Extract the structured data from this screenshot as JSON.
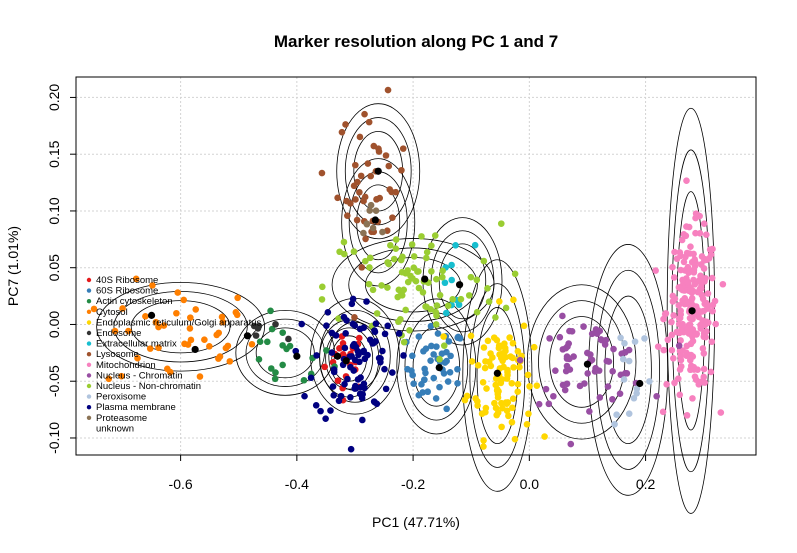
{
  "chart_data": {
    "type": "scatter",
    "title": "Marker resolution along PC 1 and 7",
    "xlabel": "PC1 (47.71%)",
    "ylabel": "PC7 (1.01%)",
    "xlim": [
      -0.78,
      0.39
    ],
    "ylim": [
      -0.115,
      0.218
    ],
    "x_ticks": [
      -0.6,
      -0.4,
      -0.2,
      0.0,
      0.2
    ],
    "x_tick_labels": [
      "-0.6",
      "-0.4",
      "-0.2",
      "0.0",
      "0.2"
    ],
    "y_ticks": [
      -0.1,
      -0.05,
      0.0,
      0.05,
      0.1,
      0.15,
      0.2
    ],
    "y_tick_labels": [
      "-0.10",
      "-0.05",
      "0.00",
      "0.05",
      "0.10",
      "0.15",
      "0.20"
    ],
    "grid": true,
    "legend_position": "left",
    "ellipse_levels": [
      1.0,
      1.35,
      1.7
    ],
    "series": [
      {
        "name": "40S Ribosome",
        "color": "#e41a1c",
        "n": 22,
        "center": [
          -0.315,
          -0.03
        ],
        "spread": [
          0.018,
          0.014
        ]
      },
      {
        "name": "60S Ribosome",
        "color": "#377eb8",
        "n": 45,
        "center": [
          -0.16,
          -0.038
        ],
        "spread": [
          0.025,
          0.018
        ]
      },
      {
        "name": "Actin cytoskeleton",
        "color": "#238b45",
        "n": 18,
        "center": [
          -0.42,
          -0.028
        ],
        "spread": [
          0.04,
          0.016
        ]
      },
      {
        "name": "Cytosol",
        "color": "#ff7f00",
        "n": 42,
        "center": [
          -0.6,
          -0.012
        ],
        "spread": [
          0.065,
          0.024
        ]
      },
      {
        "name": "Endoplasmic reticulum/Golgi apparatus",
        "color": "#ffd700",
        "n": 95,
        "center": [
          -0.05,
          -0.043
        ],
        "spread": [
          0.028,
          0.028
        ]
      },
      {
        "name": "Endosome",
        "color": "#333333",
        "n": 6,
        "center": [
          -0.47,
          -0.01
        ],
        "spread": [
          0.02,
          0.01
        ]
      },
      {
        "name": "Extracellular matrix",
        "color": "#17becf",
        "n": 10,
        "center": [
          -0.13,
          0.035
        ],
        "spread": [
          0.018,
          0.02
        ]
      },
      {
        "name": "Lysosome",
        "color": "#a0522d",
        "n": 45,
        "center": [
          -0.27,
          0.125
        ],
        "spread": [
          0.03,
          0.035
        ]
      },
      {
        "name": "Mitochondrion",
        "color": "#f781bf",
        "n": 210,
        "center": [
          0.28,
          0.012
        ],
        "spread": [
          0.022,
          0.035
        ]
      },
      {
        "name": "Nucleus - Chromatin",
        "color": "#984ea3",
        "n": 65,
        "center": [
          0.1,
          -0.033
        ],
        "spread": [
          0.05,
          0.018
        ]
      },
      {
        "name": "Nucleus - Non-chromatin",
        "color": "#9acd32",
        "n": 85,
        "center": [
          -0.2,
          0.032
        ],
        "spread": [
          0.075,
          0.028
        ]
      },
      {
        "name": "Peroxisome",
        "color": "#b0c4de",
        "n": 14,
        "center": [
          0.175,
          -0.04
        ],
        "spread": [
          0.02,
          0.03
        ]
      },
      {
        "name": "Plasma membrane",
        "color": "#000080",
        "n": 85,
        "center": [
          -0.3,
          -0.03
        ],
        "spread": [
          0.035,
          0.028
        ]
      },
      {
        "name": "Proteasome",
        "color": "#8b7355",
        "n": 8,
        "center": [
          -0.27,
          0.09
        ],
        "spread": [
          0.015,
          0.015
        ]
      },
      {
        "name": "unknown",
        "color": "#ffffff",
        "n": 0,
        "center": [
          0,
          0
        ],
        "spread": [
          0,
          0
        ]
      }
    ],
    "ellipses": [
      {
        "center": [
          -0.6,
          -0.002
        ],
        "radius": [
          0.085,
          0.023
        ]
      },
      {
        "center": [
          -0.42,
          -0.025
        ],
        "radius": [
          0.05,
          0.022
        ]
      },
      {
        "center": [
          -0.3,
          -0.028
        ],
        "radius": [
          0.045,
          0.03
        ]
      },
      {
        "center": [
          -0.31,
          -0.03
        ],
        "radius": [
          0.03,
          0.02
        ]
      },
      {
        "center": [
          -0.26,
          0.135
        ],
        "radius": [
          0.042,
          0.035
        ]
      },
      {
        "center": [
          -0.26,
          0.09
        ],
        "radius": [
          0.037,
          0.033
        ]
      },
      {
        "center": [
          -0.2,
          0.035
        ],
        "radius": [
          0.082,
          0.024
        ]
      },
      {
        "center": [
          -0.115,
          0.038
        ],
        "radius": [
          0.04,
          0.033
        ]
      },
      {
        "center": [
          -0.16,
          -0.037
        ],
        "radius": [
          0.04,
          0.035
        ]
      },
      {
        "center": [
          -0.055,
          -0.045
        ],
        "radius": [
          0.035,
          0.06
        ]
      },
      {
        "center": [
          0.09,
          -0.033
        ],
        "radius": [
          0.055,
          0.04
        ]
      },
      {
        "center": [
          0.17,
          -0.04
        ],
        "radius": [
          0.04,
          0.065
        ]
      },
      {
        "center": [
          0.278,
          0.012
        ],
        "radius": [
          0.024,
          0.105
        ]
      }
    ],
    "centroids": [
      [
        -0.575,
        -0.022
      ],
      [
        -0.4,
        -0.028
      ],
      [
        -0.33,
        -0.028
      ],
      [
        -0.315,
        -0.032
      ],
      [
        -0.26,
        0.135
      ],
      [
        -0.265,
        0.092
      ],
      [
        -0.18,
        0.04
      ],
      [
        -0.12,
        0.035
      ],
      [
        -0.155,
        -0.038
      ],
      [
        -0.055,
        -0.043
      ],
      [
        0.1,
        -0.035
      ],
      [
        0.19,
        -0.052
      ],
      [
        0.28,
        0.012
      ],
      [
        -0.65,
        0.008
      ],
      [
        -0.485,
        -0.01
      ]
    ]
  }
}
